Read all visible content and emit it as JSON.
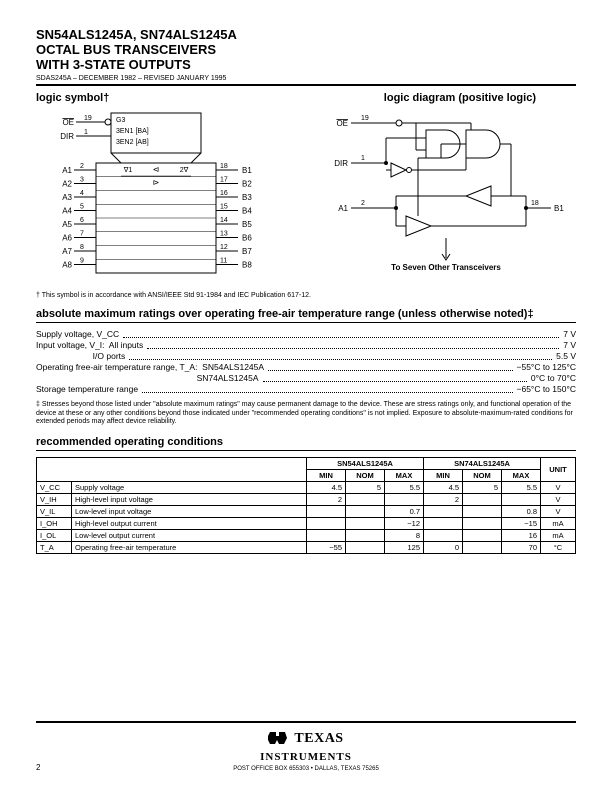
{
  "header": {
    "title1": "SN54ALS1245A, SN74ALS1245A",
    "title2": "OCTAL BUS TRANSCEIVERS",
    "title3": "WITH 3-STATE OUTPUTS",
    "docid": "SDAS245A – DECEMBER 1982 – REVISED JANUARY 1995"
  },
  "sections": {
    "logic_symbol": "logic symbol†",
    "logic_diagram": "logic diagram (positive logic)",
    "abs_max": "absolute maximum ratings over operating free-air temperature range (unless otherwise noted)‡",
    "rec_cond": "recommended operating conditions"
  },
  "symbol": {
    "pins_left_top": [
      {
        "name": "OE",
        "num": "19",
        "overline": true
      },
      {
        "name": "DIR",
        "num": "1",
        "overline": false
      }
    ],
    "g_labels": [
      "G3",
      "3EN1 [BA]",
      "3EN2 [AB]"
    ],
    "body_labels": {
      "left": "∇1",
      "mid": "⊲",
      "right": "2∇",
      "mid2": "⊳"
    },
    "a_pins": [
      {
        "name": "A1",
        "num": "2"
      },
      {
        "name": "A2",
        "num": "3"
      },
      {
        "name": "A3",
        "num": "4"
      },
      {
        "name": "A4",
        "num": "5"
      },
      {
        "name": "A5",
        "num": "6"
      },
      {
        "name": "A6",
        "num": "7"
      },
      {
        "name": "A7",
        "num": "8"
      },
      {
        "name": "A8",
        "num": "9"
      }
    ],
    "b_pins": [
      {
        "name": "B1",
        "num": "18"
      },
      {
        "name": "B2",
        "num": "17"
      },
      {
        "name": "B3",
        "num": "16"
      },
      {
        "name": "B4",
        "num": "15"
      },
      {
        "name": "B5",
        "num": "14"
      },
      {
        "name": "B6",
        "num": "13"
      },
      {
        "name": "B7",
        "num": "12"
      },
      {
        "name": "B8",
        "num": "11"
      }
    ]
  },
  "logic_diag": {
    "oe": {
      "name": "OE",
      "num": "19"
    },
    "dir": {
      "name": "DIR",
      "num": "1"
    },
    "a1": {
      "name": "A1",
      "num": "2"
    },
    "b1": {
      "name": "B1",
      "num": "18"
    },
    "footer": "To Seven Other Transceivers"
  },
  "footnote_symbol": "† This symbol is in accordance with ANSI/IEEE Std 91-1984 and IEC Publication 617-12.",
  "ratings": [
    {
      "label": "Supply voltage, V_CC",
      "value": "7 V"
    },
    {
      "label": "Input voltage, V_I:  All inputs",
      "value": "7 V"
    },
    {
      "label": "                        I/O ports",
      "value": "5.5 V"
    },
    {
      "label": "Operating free-air temperature range, T_A:  SN54ALS1245A",
      "value": "−55°C to 125°C"
    },
    {
      "label": "                                                                    SN74ALS1245A",
      "value": "0°C to 70°C"
    },
    {
      "label": "Storage temperature range",
      "value": "−65°C to 150°C"
    }
  ],
  "footnote_stress": "‡ Stresses beyond those listed under \"absolute maximum ratings\" may cause permanent damage to the device. These are stress ratings only, and functional operation of the device at these or any other conditions beyond those indicated under \"recommended operating conditions\" is not implied. Exposure to absolute-maximum-rated conditions for extended periods may affect device reliability.",
  "cond_table": {
    "parts": [
      "SN54ALS1245A",
      "SN74ALS1245A"
    ],
    "cols": [
      "MIN",
      "NOM",
      "MAX",
      "MIN",
      "NOM",
      "MAX"
    ],
    "unit_hdr": "UNIT",
    "rows": [
      {
        "sym": "V_CC",
        "desc": "Supply voltage",
        "v": [
          "4.5",
          "5",
          "5.5",
          "4.5",
          "5",
          "5.5"
        ],
        "unit": "V"
      },
      {
        "sym": "V_IH",
        "desc": "High-level input voltage",
        "v": [
          "2",
          "",
          "",
          "2",
          "",
          ""
        ],
        "unit": "V"
      },
      {
        "sym": "V_IL",
        "desc": "Low-level input voltage",
        "v": [
          "",
          "",
          "0.7",
          "",
          "",
          "0.8"
        ],
        "unit": "V"
      },
      {
        "sym": "I_OH",
        "desc": "High-level output current",
        "v": [
          "",
          "",
          "−12",
          "",
          "",
          "−15"
        ],
        "unit": "mA"
      },
      {
        "sym": "I_OL",
        "desc": "Low-level output current",
        "v": [
          "",
          "",
          "8",
          "",
          "",
          "16"
        ],
        "unit": "mA"
      },
      {
        "sym": "T_A",
        "desc": "Operating free-air temperature",
        "v": [
          "−55",
          "",
          "125",
          "0",
          "",
          "70"
        ],
        "unit": "°C"
      }
    ]
  },
  "footer": {
    "logo_top": "TEXAS",
    "logo_bot": "INSTRUMENTS",
    "addr": "POST OFFICE BOX 655303 • DALLAS, TEXAS 75265",
    "page": "2"
  },
  "style": {
    "stroke": "#000000",
    "fill_none": "none",
    "font_small": 7,
    "font_pin": 8
  }
}
